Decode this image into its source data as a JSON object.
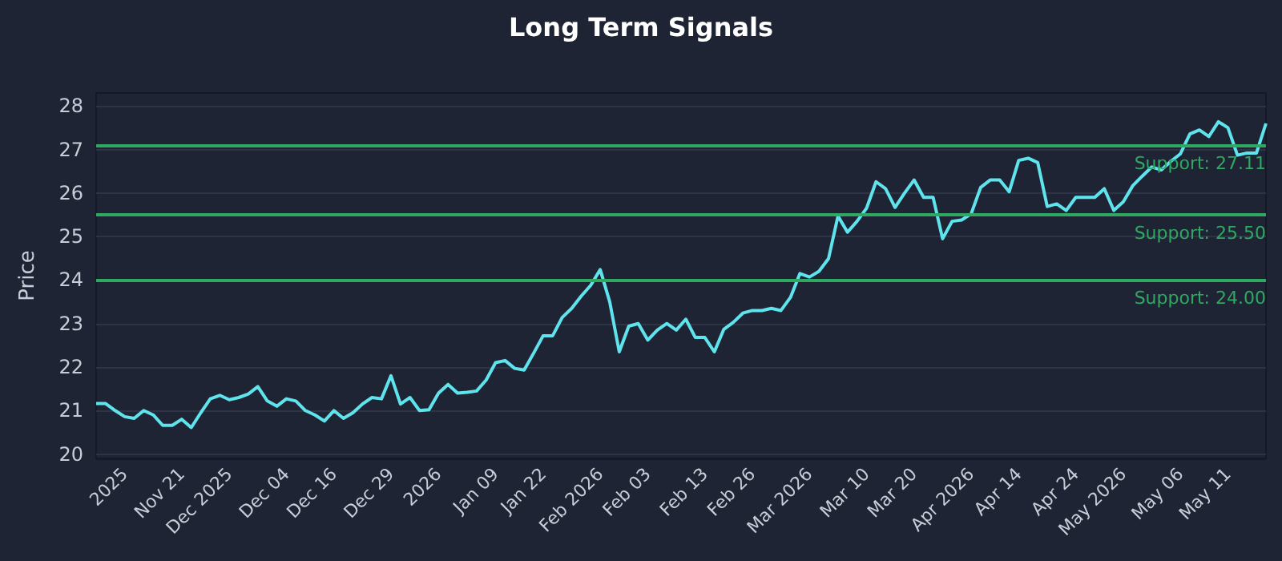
{
  "chart_data": {
    "type": "line",
    "title": "Long Term Signals",
    "ylabel": "Price",
    "categories": [
      null,
      null,
      null,
      "2025",
      null,
      null,
      null,
      null,
      null,
      "Nov 21",
      null,
      null,
      null,
      null,
      "Dec 2025",
      null,
      null,
      null,
      null,
      null,
      "Dec 04",
      null,
      null,
      null,
      null,
      "Dec 16",
      null,
      null,
      null,
      null,
      null,
      "Dec 29",
      null,
      null,
      null,
      null,
      "2026",
      null,
      null,
      null,
      null,
      null,
      "Jan 09",
      null,
      null,
      null,
      null,
      "Jan 22",
      null,
      null,
      null,
      null,
      null,
      "Feb 2026",
      null,
      null,
      null,
      null,
      "Feb 03",
      null,
      null,
      null,
      null,
      null,
      "Feb 13",
      null,
      null,
      null,
      null,
      "Feb 26",
      null,
      null,
      null,
      null,
      null,
      "Mar 2026",
      null,
      null,
      null,
      null,
      null,
      "Mar 10",
      null,
      null,
      null,
      null,
      "Mar 20",
      null,
      null,
      null,
      null,
      null,
      "Apr 2026",
      null,
      null,
      null,
      null,
      "Apr 14",
      null,
      null,
      null,
      null,
      null,
      "Apr 24",
      null,
      null,
      null,
      null,
      "May 2026",
      null,
      null,
      null,
      null,
      null,
      "May 06",
      null,
      null,
      null,
      null,
      "May 11",
      null,
      null,
      null,
      null
    ],
    "series": [
      {
        "color": "#5fe3ec",
        "values": [
          21.16,
          21.16,
          21.0,
          20.86,
          20.82,
          21.0,
          20.9,
          20.66,
          20.66,
          20.8,
          20.61,
          20.95,
          21.27,
          21.35,
          21.25,
          21.3,
          21.38,
          21.55,
          21.22,
          21.1,
          21.27,
          21.22,
          21.0,
          20.9,
          20.76,
          21.0,
          20.82,
          20.95,
          21.15,
          21.3,
          21.27,
          21.8,
          21.15,
          21.3,
          21.0,
          21.02,
          21.4,
          21.6,
          21.4,
          21.42,
          21.45,
          21.7,
          22.1,
          22.15,
          21.97,
          21.93,
          22.32,
          22.72,
          22.72,
          23.14,
          23.35,
          23.63,
          23.88,
          24.24,
          23.5,
          22.35,
          22.94,
          23.0,
          22.62,
          22.85,
          23.0,
          22.85,
          23.1,
          22.68,
          22.68,
          22.35,
          22.87,
          23.03,
          23.24,
          23.3,
          23.3,
          23.35,
          23.3,
          23.6,
          24.15,
          24.07,
          24.2,
          24.49,
          25.47,
          25.1,
          25.35,
          25.65,
          26.26,
          26.1,
          25.67,
          26.0,
          26.3,
          25.9,
          25.9,
          24.95,
          25.35,
          25.38,
          25.52,
          26.13,
          26.3,
          26.3,
          26.03,
          26.75,
          26.8,
          26.7,
          25.69,
          25.75,
          25.6,
          25.9,
          25.9,
          25.9,
          26.1,
          25.6,
          25.8,
          26.17,
          26.39,
          26.6,
          26.53,
          26.73,
          26.9,
          27.36,
          27.45,
          27.3,
          27.64,
          27.5,
          26.87,
          26.92,
          26.92,
          27.6
        ]
      }
    ],
    "ylim": [
      19.9,
      28.3
    ],
    "yticks": [
      20,
      21,
      22,
      23,
      24,
      25,
      26,
      27,
      28
    ],
    "ref_lines": [
      {
        "axis": "y",
        "value": 27.11,
        "label": "Support: 27.11",
        "color": "#2fa862"
      },
      {
        "axis": "y",
        "value": 25.5,
        "label": "Support: 25.50",
        "color": "#2fa862"
      },
      {
        "axis": "y",
        "value": 24.0,
        "label": "Support: 24.00",
        "color": "#2fa862"
      }
    ],
    "grid": "y",
    "marker": "none",
    "line_style": "solid"
  }
}
